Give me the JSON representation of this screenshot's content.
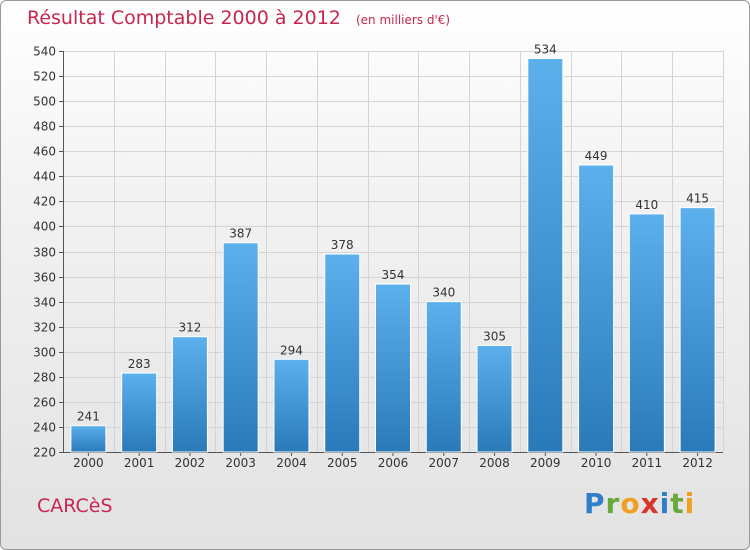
{
  "chart_data": {
    "type": "bar",
    "title": "Résultat Comptable 2000 à 2012",
    "subtitle": "(en milliers d'€)",
    "categories": [
      "2000",
      "2001",
      "2002",
      "2003",
      "2004",
      "2005",
      "2006",
      "2007",
      "2008",
      "2009",
      "2010",
      "2011",
      "2012"
    ],
    "values": [
      241,
      283,
      312,
      387,
      294,
      378,
      354,
      340,
      305,
      534,
      449,
      410,
      415
    ],
    "ylim": [
      220,
      540
    ],
    "yticks": [
      220,
      240,
      260,
      280,
      300,
      320,
      340,
      360,
      380,
      400,
      420,
      440,
      460,
      480,
      500,
      520,
      540
    ],
    "xlabel": "",
    "ylabel": "",
    "grid": true
  },
  "commune": "CARCèS",
  "brand": {
    "letters": [
      "P",
      "r",
      "o",
      "x",
      "i",
      "t",
      "i"
    ],
    "colors": [
      "#2f7fc8",
      "#6aa83c",
      "#f0a020",
      "#d8342a",
      "#2f7fc8",
      "#6aa83c",
      "#f0a020"
    ]
  },
  "colors": {
    "bar_top": "#5cb0ec",
    "bar_bottom": "#2a7ab9",
    "accent": "#c8264f"
  }
}
